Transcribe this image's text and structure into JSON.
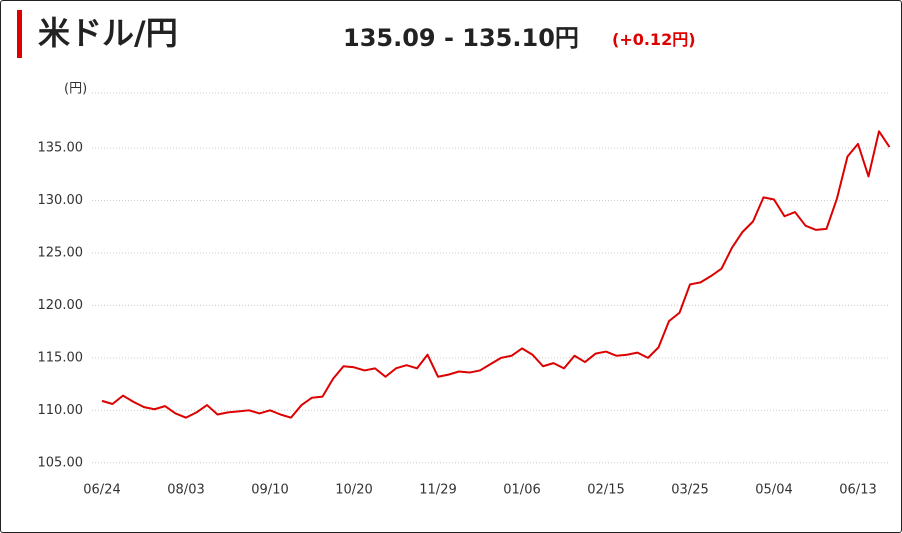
{
  "header": {
    "title": "米ドル/円",
    "quote": "135.09 - 135.10円",
    "change": "(+0.12円)"
  },
  "chart_data": {
    "type": "line",
    "y_label": "(円)",
    "categories": [
      "06/24",
      null,
      null,
      null,
      null,
      null,
      null,
      null,
      "08/03",
      null,
      null,
      null,
      null,
      null,
      null,
      null,
      "09/10",
      null,
      null,
      null,
      null,
      null,
      null,
      null,
      "10/20",
      null,
      null,
      null,
      null,
      null,
      null,
      null,
      "11/29",
      null,
      null,
      null,
      null,
      null,
      null,
      null,
      "01/06",
      null,
      null,
      null,
      null,
      null,
      null,
      null,
      "02/15",
      null,
      null,
      null,
      null,
      null,
      null,
      null,
      "03/25",
      null,
      null,
      null,
      null,
      null,
      null,
      null,
      "05/04",
      null,
      null,
      null,
      null,
      null,
      null,
      null,
      "06/13",
      null,
      null,
      null
    ],
    "series": [
      {
        "color": "#dd0000",
        "values": [
          110.9,
          110.6,
          111.4,
          110.8,
          110.3,
          110.1,
          110.4,
          109.7,
          109.3,
          109.8,
          110.5,
          109.6,
          109.8,
          109.9,
          110.0,
          109.7,
          110.0,
          109.6,
          109.3,
          110.5,
          111.2,
          111.3,
          113.0,
          114.2,
          114.1,
          113.8,
          114.0,
          113.2,
          114.0,
          114.3,
          114.0,
          115.3,
          113.2,
          113.4,
          113.7,
          113.6,
          113.8,
          114.4,
          115.0,
          115.2,
          115.9,
          115.3,
          114.2,
          114.5,
          114.0,
          115.2,
          114.6,
          115.4,
          115.6,
          115.2,
          115.3,
          115.5,
          115.0,
          116.0,
          118.5,
          119.3,
          122.0,
          122.2,
          122.8,
          123.5,
          125.5,
          127.0,
          128.0,
          130.3,
          130.1,
          128.5,
          128.9,
          127.6,
          127.2,
          127.3,
          130.2,
          134.2,
          135.4,
          132.3,
          136.6,
          135.1
        ]
      }
    ],
    "ylim": [
      104.5,
      140.25
    ],
    "yticks": [
      {
        "value": 105,
        "label": "105.00"
      },
      {
        "value": 110,
        "label": "110.00"
      },
      {
        "value": 115,
        "label": "115.00"
      },
      {
        "value": 120,
        "label": "120.00"
      },
      {
        "value": 125,
        "label": "125.00"
      },
      {
        "value": 130,
        "label": "130.00"
      },
      {
        "value": 135,
        "label": "135.00"
      }
    ],
    "grid": true
  }
}
